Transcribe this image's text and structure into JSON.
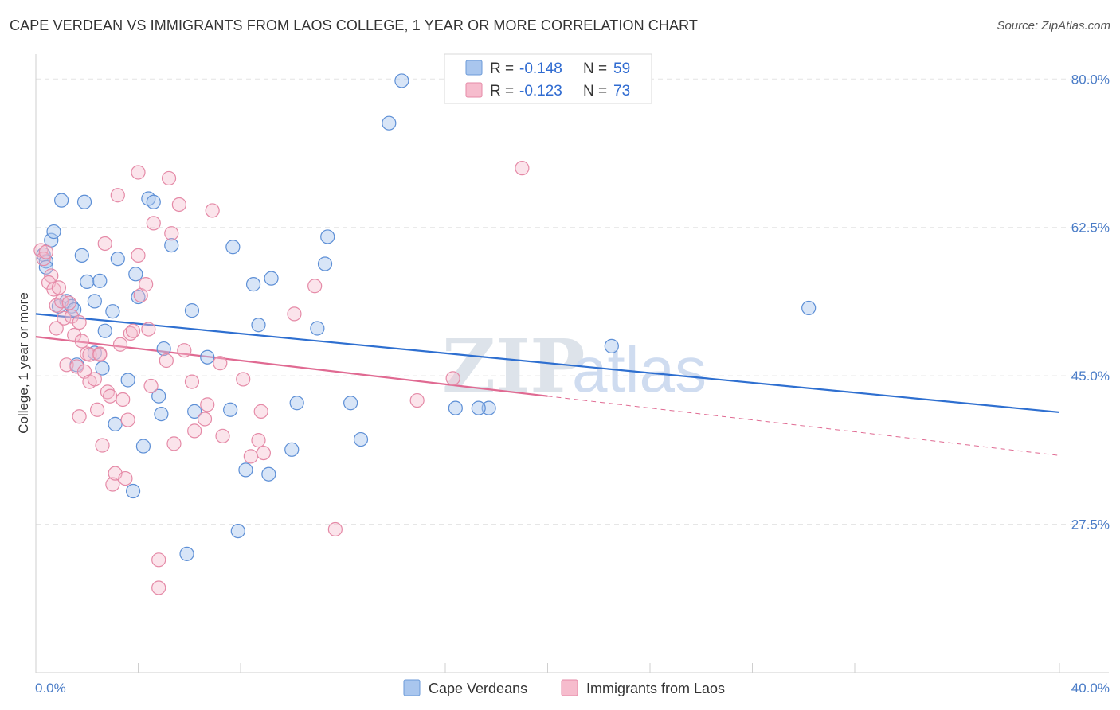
{
  "title": "CAPE VERDEAN VS IMMIGRANTS FROM LAOS COLLEGE, 1 YEAR OR MORE CORRELATION CHART",
  "source": "Source: ZipAtlas.com",
  "watermark": {
    "zip": "ZIP",
    "atlas": "atlas"
  },
  "legend": {
    "r_label": "R =",
    "n_label": "N =",
    "series": [
      {
        "r": "-0.148",
        "n": "59",
        "color": "#a9c6ee",
        "stroke": "#6b9ad8"
      },
      {
        "r": "-0.123",
        "n": "73",
        "color": "#f6bccd",
        "stroke": "#e58aa7"
      }
    ]
  },
  "bottom_legend": [
    "Cape Verdeans",
    "Immigrants from Laos"
  ],
  "chart_data": {
    "type": "scatter",
    "ylabel": "College, 1 year or more",
    "xlim": [
      0,
      40
    ],
    "ylim": [
      10,
      82
    ],
    "y_ticks": [
      27.5,
      45.0,
      62.5,
      80.0
    ],
    "y_tick_labels": [
      "27.5%",
      "45.0%",
      "62.5%",
      "80.0%"
    ],
    "x_tick_labels": [
      "0.0%",
      "40.0%"
    ],
    "grid": true,
    "colors": {
      "blue": "#4a86d6",
      "pink": "#e8739a",
      "blue_line": "#2e6fd0",
      "pink_line": "#e06a92"
    },
    "series": [
      {
        "name": "Cape Verdeans",
        "trend": {
          "x0": 0,
          "y0": 52.3,
          "x1": 40,
          "y1": 40.7
        },
        "points": [
          [
            0.3,
            59.3
          ],
          [
            0.4,
            58.5
          ],
          [
            0.4,
            57.8
          ],
          [
            0.6,
            61.0
          ],
          [
            0.7,
            62.0
          ],
          [
            0.9,
            53.2
          ],
          [
            1.0,
            65.7
          ],
          [
            1.2,
            53.8
          ],
          [
            1.4,
            53.2
          ],
          [
            1.5,
            52.8
          ],
          [
            1.6,
            46.3
          ],
          [
            1.8,
            59.2
          ],
          [
            1.9,
            65.5
          ],
          [
            2.0,
            56.1
          ],
          [
            2.3,
            47.7
          ],
          [
            2.3,
            53.8
          ],
          [
            2.5,
            56.2
          ],
          [
            2.6,
            45.9
          ],
          [
            2.7,
            50.3
          ],
          [
            3.0,
            52.6
          ],
          [
            3.1,
            39.3
          ],
          [
            3.2,
            58.8
          ],
          [
            3.6,
            44.5
          ],
          [
            3.8,
            31.4
          ],
          [
            3.9,
            57.0
          ],
          [
            4.0,
            54.3
          ],
          [
            4.2,
            36.7
          ],
          [
            4.4,
            65.9
          ],
          [
            4.6,
            65.5
          ],
          [
            4.8,
            42.6
          ],
          [
            4.9,
            40.5
          ],
          [
            5.0,
            48.2
          ],
          [
            5.3,
            60.4
          ],
          [
            5.9,
            24.0
          ],
          [
            6.1,
            52.7
          ],
          [
            6.2,
            40.8
          ],
          [
            6.7,
            47.2
          ],
          [
            7.6,
            41.0
          ],
          [
            7.7,
            60.2
          ],
          [
            7.9,
            26.7
          ],
          [
            8.2,
            33.9
          ],
          [
            8.5,
            55.8
          ],
          [
            8.7,
            51.0
          ],
          [
            9.1,
            33.4
          ],
          [
            9.2,
            56.5
          ],
          [
            10.0,
            36.3
          ],
          [
            10.2,
            41.8
          ],
          [
            11.0,
            50.6
          ],
          [
            11.3,
            58.2
          ],
          [
            11.4,
            61.4
          ],
          [
            12.3,
            41.8
          ],
          [
            12.7,
            37.5
          ],
          [
            13.8,
            74.8
          ],
          [
            14.3,
            79.8
          ],
          [
            16.4,
            41.2
          ],
          [
            17.7,
            41.2
          ],
          [
            17.3,
            41.2
          ],
          [
            22.5,
            48.5
          ],
          [
            30.2,
            53.0
          ]
        ]
      },
      {
        "name": "Immigrants from Laos",
        "trend": {
          "x0": 0,
          "y0": 49.6,
          "x1": 20.0,
          "y1": 42.6,
          "dash_to_x": 40,
          "dash_to_y": 35.6
        },
        "points": [
          [
            0.2,
            59.8
          ],
          [
            0.3,
            58.8
          ],
          [
            0.4,
            59.6
          ],
          [
            0.6,
            56.8
          ],
          [
            0.5,
            56.0
          ],
          [
            0.7,
            55.2
          ],
          [
            0.8,
            53.3
          ],
          [
            0.8,
            50.6
          ],
          [
            0.9,
            55.4
          ],
          [
            1.0,
            53.8
          ],
          [
            1.1,
            51.8
          ],
          [
            1.2,
            46.3
          ],
          [
            1.4,
            52.0
          ],
          [
            1.5,
            49.8
          ],
          [
            1.6,
            46.1
          ],
          [
            1.7,
            51.3
          ],
          [
            1.7,
            40.2
          ],
          [
            1.8,
            49.1
          ],
          [
            1.9,
            45.5
          ],
          [
            2.0,
            47.6
          ],
          [
            2.1,
            47.5
          ],
          [
            2.1,
            44.3
          ],
          [
            2.3,
            44.6
          ],
          [
            2.4,
            41.0
          ],
          [
            2.5,
            47.6
          ],
          [
            2.6,
            36.8
          ],
          [
            2.7,
            60.6
          ],
          [
            2.8,
            43.1
          ],
          [
            2.9,
            42.6
          ],
          [
            3.0,
            32.2
          ],
          [
            3.1,
            33.5
          ],
          [
            3.2,
            66.3
          ],
          [
            3.3,
            48.7
          ],
          [
            3.4,
            42.2
          ],
          [
            3.5,
            32.9
          ],
          [
            3.6,
            39.8
          ],
          [
            3.7,
            50.0
          ],
          [
            3.8,
            50.3
          ],
          [
            4.0,
            59.2
          ],
          [
            4.0,
            69.0
          ],
          [
            4.1,
            54.5
          ],
          [
            4.3,
            55.8
          ],
          [
            4.4,
            50.5
          ],
          [
            4.5,
            43.8
          ],
          [
            4.6,
            63.0
          ],
          [
            4.8,
            23.3
          ],
          [
            4.8,
            20.0
          ],
          [
            5.1,
            46.8
          ],
          [
            5.2,
            68.3
          ],
          [
            5.3,
            61.8
          ],
          [
            5.4,
            37.0
          ],
          [
            5.6,
            65.2
          ],
          [
            5.8,
            48.0
          ],
          [
            6.1,
            44.3
          ],
          [
            6.2,
            38.5
          ],
          [
            6.6,
            39.9
          ],
          [
            6.7,
            41.6
          ],
          [
            6.9,
            64.5
          ],
          [
            7.2,
            46.5
          ],
          [
            7.3,
            37.9
          ],
          [
            8.1,
            44.6
          ],
          [
            8.4,
            35.5
          ],
          [
            8.7,
            37.4
          ],
          [
            8.8,
            40.8
          ],
          [
            8.9,
            35.9
          ],
          [
            10.1,
            52.3
          ],
          [
            10.9,
            55.6
          ],
          [
            11.7,
            26.9
          ],
          [
            14.9,
            42.1
          ],
          [
            16.3,
            44.7
          ],
          [
            19.0,
            69.5
          ],
          [
            2.5,
            47.5
          ],
          [
            1.3,
            53.6
          ]
        ]
      }
    ]
  }
}
